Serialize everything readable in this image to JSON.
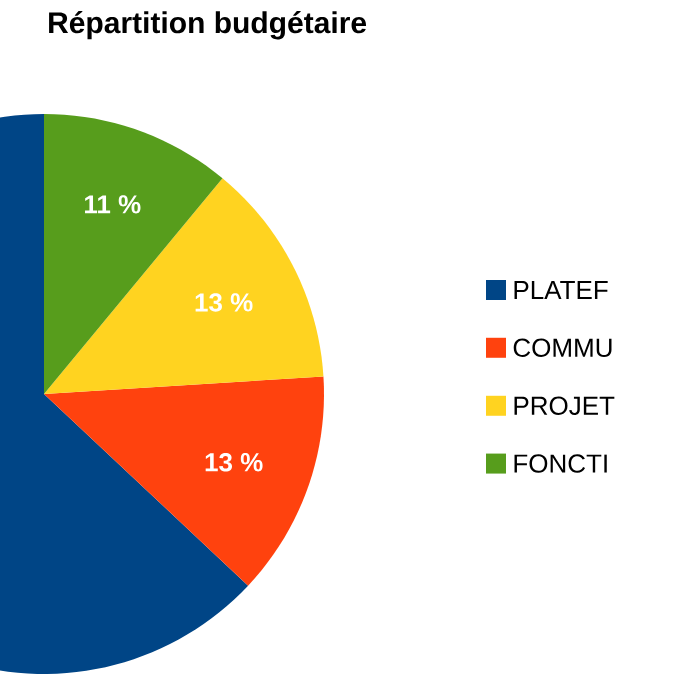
{
  "chart_data": {
    "type": "pie",
    "title": "Répartition budgétaire",
    "categories": [
      "PLATEF",
      "COMMU",
      "PROJET",
      "FONCTI"
    ],
    "values": [
      63,
      13,
      13,
      11
    ],
    "colors": [
      "#004586",
      "#ff420e",
      "#ffd320",
      "#579d1c"
    ],
    "value_labels": [
      null,
      "13 %",
      "13 %",
      "11 %"
    ],
    "legend": "right"
  }
}
